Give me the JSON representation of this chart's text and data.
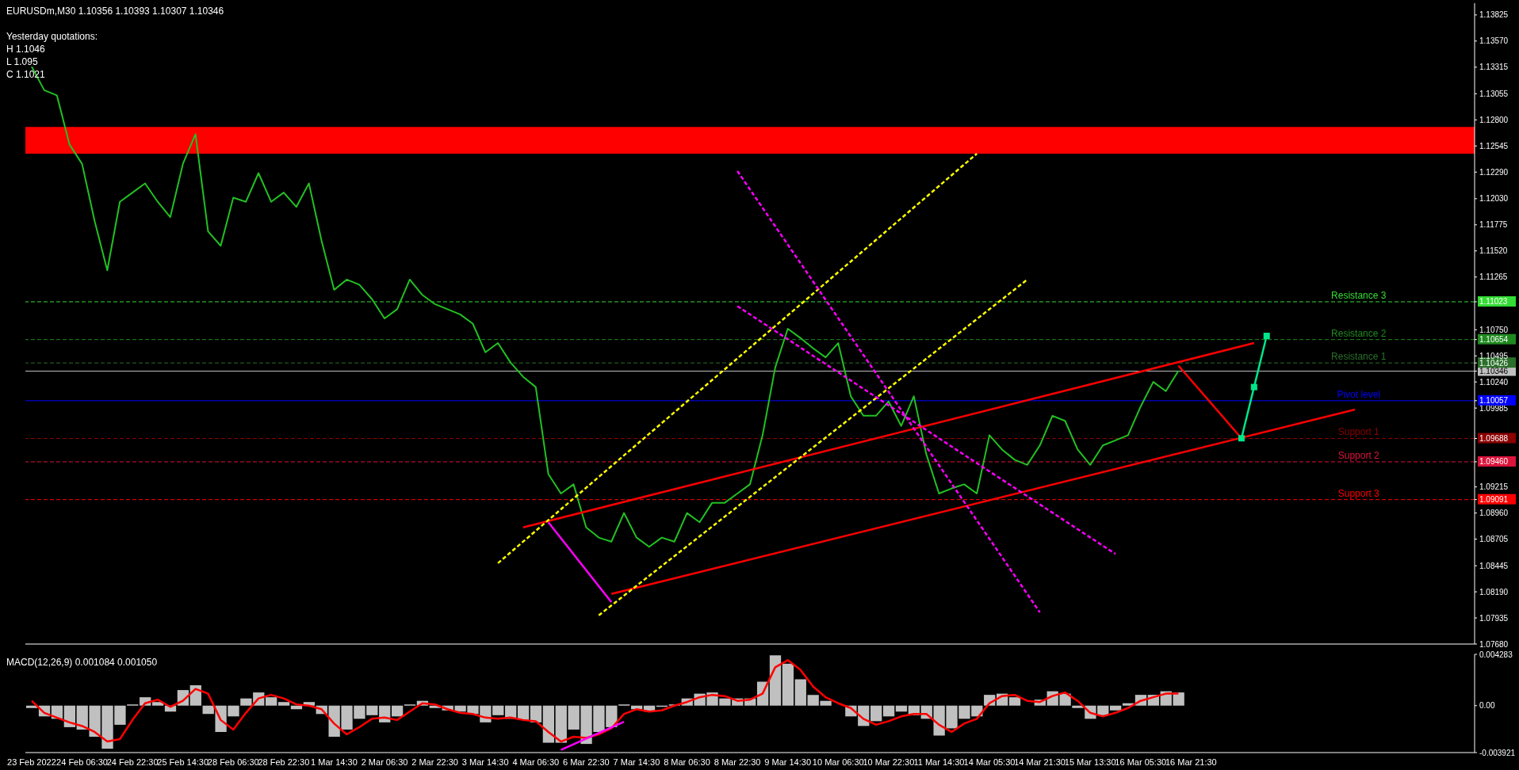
{
  "chart_data": [
    {
      "type": "line",
      "title": "EURUSDm,M30  1.10356 1.10393 1.10307 1.10346",
      "annotations": [
        "Yesterday quotations:",
        "H 1.1046",
        "L 1.095",
        "C 1.1021"
      ],
      "categories": [
        null,
        null,
        null,
        null,
        null,
        null,
        null,
        null,
        null,
        null,
        null,
        null,
        null,
        null,
        null,
        null,
        null,
        null,
        null,
        null,
        null,
        null,
        null,
        null,
        null,
        null,
        null,
        null,
        null,
        null,
        null,
        null,
        null,
        null,
        null,
        null,
        null,
        null,
        null,
        null,
        null,
        null,
        null,
        null,
        null,
        null,
        null,
        null,
        null,
        null,
        null,
        null,
        null,
        null,
        null,
        null,
        null,
        null,
        null,
        null,
        null,
        null,
        null,
        null,
        null,
        null,
        null,
        null,
        null,
        null,
        null,
        null,
        null,
        null,
        null,
        null,
        null,
        null,
        null,
        null,
        null,
        null,
        null,
        null,
        null,
        null,
        null,
        null,
        null,
        null,
        null,
        null,
        null,
        null,
        null,
        null,
        null,
        null,
        null,
        null,
        null,
        null,
        null,
        null,
        null,
        null,
        null,
        null,
        null,
        null,
        null,
        null,
        null,
        null,
        null
      ],
      "series": [
        {
          "color": "#22c022",
          "values": [
            1.1332,
            1.1309,
            1.1304,
            1.1256,
            1.1237,
            1.1181,
            1.1133,
            1.12,
            1.1209,
            1.1218,
            1.12,
            1.1185,
            1.1237,
            1.1266,
            1.1171,
            1.1157,
            1.1204,
            1.12,
            1.1228,
            1.12,
            1.1209,
            1.1195,
            1.1218,
            1.1162,
            1.1114,
            1.1124,
            1.1119,
            1.1105,
            1.1086,
            1.1095,
            1.1124,
            1.1109,
            1.11,
            1.1095,
            1.109,
            1.1081,
            1.1053,
            1.1062,
            1.1043,
            1.1029,
            1.1019,
            1.0934,
            1.0915,
            1.0924,
            1.0882,
            1.0872,
            1.0868,
            1.0896,
            1.0872,
            1.0863,
            1.0872,
            1.0868,
            1.0896,
            1.0887,
            1.0906,
            1.0906,
            1.0915,
            1.0924,
            1.0972,
            1.1038,
            1.1076,
            1.1067,
            1.1057,
            1.1048,
            1.1062,
            1.101,
            1.0991,
            1.0991,
            1.1005,
            1.0981,
            1.101,
            1.0953,
            1.0915,
            1.092,
            1.0924,
            1.0915,
            1.0972,
            1.0958,
            1.0948,
            1.0943,
            1.0962,
            1.0991,
            1.0986,
            1.0958,
            1.0943,
            1.0962,
            1.0967,
            1.0972,
            1.1,
            1.1024,
            1.1015,
            1.1035,
            null,
            null,
            null,
            null,
            null,
            null,
            null,
            null,
            null,
            null,
            null,
            null,
            null,
            null,
            null,
            null,
            null,
            null,
            null,
            null,
            null,
            null,
            null
          ]
        },
        {
          "color": "#ff0000",
          "values": [
            null,
            null,
            null,
            null,
            null,
            null,
            null,
            null,
            null,
            null,
            null,
            null,
            null,
            null,
            null,
            null,
            null,
            null,
            null,
            null,
            null,
            null,
            null,
            null,
            null,
            null,
            null,
            null,
            null,
            null,
            null,
            null,
            null,
            null,
            null,
            null,
            null,
            null,
            null,
            1.0882,
            null,
            null,
            null,
            null,
            null,
            null,
            null,
            null,
            null,
            null,
            null,
            null,
            null,
            null,
            null,
            null,
            null,
            null,
            null,
            null,
            null,
            null,
            null,
            null,
            null,
            null,
            null,
            null,
            null,
            null,
            null,
            null,
            null,
            null,
            null,
            null,
            null,
            null,
            null,
            null,
            null,
            null,
            null,
            null,
            null,
            null,
            null,
            null,
            null,
            null,
            null,
            null,
            null,
            null,
            null,
            null,
            null,
            1.1062,
            null,
            null,
            null,
            null,
            null,
            null,
            null,
            null,
            null,
            null,
            null,
            null,
            null,
            null,
            null,
            null,
            null
          ]
        },
        {
          "color": "#ff0000",
          "values": [
            null,
            null,
            null,
            null,
            null,
            null,
            null,
            null,
            null,
            null,
            null,
            null,
            null,
            null,
            null,
            null,
            null,
            null,
            null,
            null,
            null,
            null,
            null,
            null,
            null,
            null,
            null,
            null,
            null,
            null,
            null,
            null,
            null,
            null,
            null,
            null,
            null,
            null,
            null,
            null,
            null,
            null,
            null,
            null,
            null,
            null,
            1.0817,
            null,
            null,
            null,
            null,
            null,
            null,
            null,
            null,
            null,
            null,
            null,
            null,
            null,
            null,
            null,
            null,
            null,
            null,
            null,
            null,
            null,
            null,
            null,
            null,
            null,
            null,
            null,
            null,
            null,
            null,
            null,
            null,
            null,
            null,
            null,
            null,
            null,
            null,
            null,
            null,
            null,
            null,
            null,
            null,
            null,
            null,
            null,
            null,
            null,
            null,
            null,
            null,
            null,
            null,
            null,
            null,
            null,
            null,
            1.0997,
            null,
            null,
            null,
            null,
            null,
            null,
            null,
            null,
            null
          ]
        },
        {
          "color": "#ff0000",
          "values": [
            null,
            null,
            null,
            null,
            null,
            null,
            null,
            null,
            null,
            null,
            null,
            null,
            null,
            null,
            null,
            null,
            null,
            null,
            null,
            null,
            null,
            null,
            null,
            null,
            null,
            null,
            null,
            null,
            null,
            null,
            null,
            null,
            null,
            null,
            null,
            null,
            null,
            null,
            null,
            null,
            null,
            null,
            null,
            null,
            null,
            null,
            null,
            null,
            null,
            null,
            null,
            null,
            null,
            null,
            null,
            null,
            null,
            null,
            null,
            null,
            null,
            null,
            null,
            null,
            null,
            null,
            null,
            null,
            null,
            null,
            null,
            null,
            null,
            null,
            null,
            null,
            null,
            null,
            null,
            null,
            null,
            null,
            null,
            null,
            null,
            null,
            null,
            null,
            null,
            null,
            null,
            1.104,
            null,
            null,
            null,
            null,
            1.0969,
            null,
            null,
            null,
            null,
            null,
            null,
            null,
            null,
            null,
            null,
            null,
            null,
            null,
            null,
            null,
            null,
            null,
            null
          ]
        },
        {
          "color": "#00e68a",
          "marker": "square",
          "values": [
            null,
            null,
            null,
            null,
            null,
            null,
            null,
            null,
            null,
            null,
            null,
            null,
            null,
            null,
            null,
            null,
            null,
            null,
            null,
            null,
            null,
            null,
            null,
            null,
            null,
            null,
            null,
            null,
            null,
            null,
            null,
            null,
            null,
            null,
            null,
            null,
            null,
            null,
            null,
            null,
            null,
            null,
            null,
            null,
            null,
            null,
            null,
            null,
            null,
            null,
            null,
            null,
            null,
            null,
            null,
            null,
            null,
            null,
            null,
            null,
            null,
            null,
            null,
            null,
            null,
            null,
            null,
            null,
            null,
            null,
            null,
            null,
            null,
            null,
            null,
            null,
            null,
            null,
            null,
            null,
            null,
            null,
            null,
            null,
            null,
            null,
            null,
            null,
            null,
            null,
            null,
            null,
            null,
            null,
            null,
            null,
            1.0969,
            1.1019,
            1.1069,
            null,
            null,
            null,
            null,
            null,
            null,
            null,
            null,
            null,
            null,
            null,
            null,
            null,
            null,
            null,
            null
          ]
        },
        {
          "color": "#ff00ff",
          "values": [
            null,
            null,
            null,
            null,
            null,
            null,
            null,
            null,
            null,
            null,
            null,
            null,
            null,
            null,
            null,
            null,
            null,
            null,
            null,
            null,
            null,
            null,
            null,
            null,
            null,
            null,
            null,
            null,
            null,
            null,
            null,
            null,
            null,
            null,
            null,
            null,
            null,
            null,
            null,
            null,
            null,
            1.0887,
            null,
            null,
            null,
            null,
            1.0809,
            null,
            null,
            null,
            null,
            null,
            null,
            null,
            null,
            null,
            null,
            null,
            null,
            null,
            null,
            null,
            null,
            null,
            null,
            null,
            null,
            null,
            null,
            null,
            null,
            null,
            null,
            null,
            null,
            null,
            null,
            null,
            null,
            null,
            null,
            null,
            null,
            null,
            null,
            null,
            null,
            null,
            null,
            null,
            null,
            null,
            null,
            null,
            null,
            null,
            null,
            null,
            null,
            null,
            null,
            null,
            null,
            null,
            null,
            null,
            null,
            null,
            null,
            null,
            null,
            null,
            null,
            null,
            null
          ]
        },
        {
          "color": "#ffff00",
          "line_style": "dashed",
          "values": [
            null,
            null,
            null,
            null,
            null,
            null,
            null,
            null,
            null,
            null,
            null,
            null,
            null,
            null,
            null,
            null,
            null,
            null,
            null,
            null,
            null,
            null,
            null,
            null,
            null,
            null,
            null,
            null,
            null,
            null,
            null,
            null,
            null,
            null,
            null,
            null,
            null,
            1.0847,
            null,
            null,
            null,
            null,
            null,
            null,
            null,
            null,
            null,
            null,
            null,
            null,
            null,
            null,
            null,
            null,
            null,
            null,
            null,
            null,
            null,
            null,
            null,
            null,
            null,
            null,
            null,
            null,
            null,
            null,
            null,
            null,
            null,
            null,
            null,
            null,
            null,
            1.1247,
            null,
            null,
            null,
            null,
            null,
            null,
            null,
            null,
            null,
            null,
            null,
            null,
            null,
            null,
            null,
            null,
            null,
            null,
            null,
            null,
            null,
            null,
            null,
            null,
            null,
            null,
            null,
            null,
            null,
            null,
            null,
            null,
            null,
            null,
            null,
            null,
            null,
            null,
            null
          ]
        },
        {
          "color": "#ffff00",
          "line_style": "dashed",
          "values": [
            null,
            null,
            null,
            null,
            null,
            null,
            null,
            null,
            null,
            null,
            null,
            null,
            null,
            null,
            null,
            null,
            null,
            null,
            null,
            null,
            null,
            null,
            null,
            null,
            null,
            null,
            null,
            null,
            null,
            null,
            null,
            null,
            null,
            null,
            null,
            null,
            null,
            null,
            null,
            null,
            null,
            null,
            null,
            null,
            null,
            1.0796,
            null,
            null,
            null,
            null,
            null,
            null,
            null,
            null,
            null,
            null,
            null,
            null,
            null,
            null,
            null,
            null,
            null,
            null,
            null,
            null,
            null,
            null,
            null,
            null,
            null,
            null,
            null,
            null,
            null,
            null,
            null,
            null,
            null,
            1.1124,
            null,
            null,
            null,
            null,
            null,
            null,
            null,
            null,
            null,
            null,
            null,
            null,
            null,
            null,
            null,
            null,
            null,
            null,
            null,
            null,
            null,
            null,
            null,
            null,
            null,
            null,
            null,
            null,
            null,
            null,
            null,
            null,
            null,
            null,
            null
          ]
        },
        {
          "color": "#ff00ff",
          "line_style": "dashed",
          "values": [
            null,
            null,
            null,
            null,
            null,
            null,
            null,
            null,
            null,
            null,
            null,
            null,
            null,
            null,
            null,
            null,
            null,
            null,
            null,
            null,
            null,
            null,
            null,
            null,
            null,
            null,
            null,
            null,
            null,
            null,
            null,
            null,
            null,
            null,
            null,
            null,
            null,
            null,
            null,
            null,
            null,
            null,
            null,
            null,
            null,
            null,
            null,
            null,
            null,
            null,
            null,
            null,
            null,
            null,
            null,
            null,
            1.123,
            null,
            null,
            null,
            null,
            null,
            null,
            null,
            null,
            null,
            null,
            null,
            null,
            null,
            null,
            null,
            null,
            null,
            null,
            null,
            null,
            null,
            null,
            null,
            1.0799,
            null,
            null,
            null,
            null,
            null,
            null,
            null,
            null,
            null,
            null,
            null,
            null,
            null,
            null,
            null,
            null,
            null,
            null,
            null,
            null,
            null,
            null,
            null,
            null,
            null,
            null,
            null,
            null,
            null,
            null,
            null,
            null,
            null,
            null
          ]
        },
        {
          "color": "#ff00ff",
          "line_style": "dashed",
          "values": [
            null,
            null,
            null,
            null,
            null,
            null,
            null,
            null,
            null,
            null,
            null,
            null,
            null,
            null,
            null,
            null,
            null,
            null,
            null,
            null,
            null,
            null,
            null,
            null,
            null,
            null,
            null,
            null,
            null,
            null,
            null,
            null,
            null,
            null,
            null,
            null,
            null,
            null,
            null,
            null,
            null,
            null,
            null,
            null,
            null,
            null,
            null,
            null,
            null,
            null,
            null,
            null,
            null,
            null,
            null,
            null,
            1.1098,
            null,
            null,
            null,
            null,
            null,
            null,
            null,
            null,
            null,
            null,
            null,
            null,
            null,
            null,
            null,
            null,
            null,
            null,
            null,
            null,
            null,
            null,
            null,
            null,
            null,
            null,
            null,
            null,
            null,
            1.0856,
            null,
            null,
            null,
            null,
            null,
            null,
            null,
            null,
            null,
            null,
            null,
            null,
            null,
            null,
            null,
            null,
            null,
            null,
            null,
            null,
            null,
            null,
            null,
            null,
            null,
            null,
            null,
            null
          ]
        }
      ],
      "ylim": [
        1.0768,
        1.1394
      ],
      "yticks": [
        {
          "value": 1.0768,
          "label": "1.07680"
        },
        1.07935,
        {
          "value": 1.0819,
          "label": "1.08190"
        },
        1.08445,
        1.08705,
        {
          "value": 1.0896,
          "label": "1.08960"
        },
        1.09091,
        1.09215,
        {
          "value": 1.0946,
          "label": "1.09460"
        },
        1.09688,
        1.09985,
        1.10057,
        {
          "value": 1.1024,
          "label": "1.10240"
        },
        1.10346,
        1.10426,
        1.10495,
        1.10654,
        {
          "value": 1.1075,
          "label": "1.10750"
        },
        1.11023,
        1.11265,
        {
          "value": 1.1152,
          "label": "1.11520"
        },
        1.11775,
        {
          "value": 1.1203,
          "label": "1.12030"
        },
        {
          "value": 1.1229,
          "label": "1.12290"
        },
        1.12545,
        {
          "value": 1.128,
          "label": "1.12800"
        },
        1.13055,
        1.13315,
        {
          "value": 1.1357,
          "label": "1.13570"
        },
        1.13825
      ],
      "tick_labels": "y",
      "ref_lines": [
        {
          "axis": "y",
          "value": 1.11023,
          "label": "Resistance 3",
          "color": "#33dd33",
          "line_style": "dashed"
        },
        {
          "axis": "y",
          "value": 1.10654,
          "label": "Resistance 2",
          "color": "#1f8a1f",
          "line_style": "dashed"
        },
        {
          "axis": "y",
          "value": 1.10426,
          "label": "Resistance 1",
          "color": "#2a6f2a",
          "line_style": "dashed"
        },
        {
          "axis": "y",
          "value": 1.10346,
          "color": "#c0c0c0",
          "line_style": "solid"
        },
        {
          "axis": "y",
          "value": 1.10057,
          "label": "Pivot level",
          "color": "#0000ff",
          "line_style": "solid"
        },
        {
          "axis": "y",
          "value": 1.09688,
          "label": "Support 1",
          "color": "#8b0000",
          "line_style": "dashed"
        },
        {
          "axis": "y",
          "value": 1.0946,
          "label": "Support 2",
          "color": "#dc143c",
          "line_style": "dashed"
        },
        {
          "axis": "y",
          "value": 1.09091,
          "label": "Support 3",
          "color": "#ff0000",
          "line_style": "dashed"
        }
      ],
      "bands": [
        {
          "axis": "y",
          "from": 1.1247,
          "to": 1.1273,
          "color": "#ff0000"
        }
      ]
    },
    {
      "type": "bar",
      "title": "MACD(12,26,9) 0.001084 0.001050",
      "categories": [
        "23 Feb 2022",
        null,
        null,
        null,
        "24 Feb 06:30",
        null,
        null,
        null,
        "24 Feb 22:30",
        null,
        null,
        null,
        "25 Feb 14:30",
        null,
        null,
        null,
        "28 Feb 06:30",
        null,
        null,
        null,
        "28 Feb 22:30",
        null,
        null,
        null,
        "1 Mar 14:30",
        null,
        null,
        null,
        "2 Mar 06:30",
        null,
        null,
        null,
        "2 Mar 22:30",
        null,
        null,
        null,
        "3 Mar 14:30",
        null,
        null,
        null,
        "4 Mar 06:30",
        null,
        null,
        null,
        "6 Mar 22:30",
        null,
        null,
        null,
        "7 Mar 14:30",
        null,
        null,
        null,
        "8 Mar 06:30",
        null,
        null,
        null,
        "8 Mar 22:30",
        null,
        null,
        null,
        "9 Mar 14:30",
        null,
        null,
        null,
        "10 Mar 06:30",
        null,
        null,
        null,
        "10 Mar 22:30",
        null,
        null,
        null,
        "11 Mar 14:30",
        null,
        null,
        null,
        "14 Mar 05:30",
        null,
        null,
        null,
        "14 Mar 21:30",
        null,
        null,
        null,
        "15 Mar 13:30",
        null,
        null,
        null,
        "16 Mar 05:30",
        null,
        null,
        null,
        "16 Mar 21:30",
        null,
        null,
        null,
        null,
        null,
        null,
        null,
        null,
        null,
        null,
        null,
        null,
        null,
        null,
        null,
        null,
        null,
        null,
        null,
        null,
        null,
        null
      ],
      "series": [
        {
          "color": "#c0c0c0",
          "values": [
            -0.0002,
            -0.0009,
            -0.0011,
            -0.0018,
            -0.002,
            -0.0026,
            -0.0036,
            -0.0016,
            0.0001,
            0.0007,
            0.0003,
            -0.0005,
            0.0013,
            0.0017,
            -0.0007,
            -0.0022,
            -0.0009,
            0.0006,
            0.0011,
            0.0007,
            0.0003,
            -0.0003,
            0.0003,
            -0.0007,
            -0.0026,
            -0.002,
            -0.0011,
            -0.0008,
            -0.0014,
            -0.0009,
            0.0001,
            0.0004,
            -0.0002,
            -0.0004,
            -0.0005,
            -0.0007,
            -0.0014,
            -0.0008,
            -0.0011,
            -0.0012,
            -0.0014,
            -0.0031,
            -0.0031,
            -0.002,
            -0.0032,
            -0.0022,
            -0.0018,
            0.0001,
            -0.0003,
            -0.0005,
            -0.0001,
            0.0001,
            0.0006,
            0.001,
            0.0011,
            0.0006,
            0.0006,
            0.0006,
            0.002,
            0.0042,
            0.0035,
            0.0022,
            0.0009,
            0.0004,
            0,
            -0.0009,
            -0.0017,
            -0.0013,
            -0.0009,
            -0.0005,
            -0.0008,
            -0.0011,
            -0.0025,
            -0.0019,
            -0.0011,
            -0.0009,
            0.0009,
            0.001,
            0.0007,
            0,
            0.0005,
            0.0012,
            0.001,
            -0.0002,
            -0.0011,
            -0.0008,
            -0.0004,
            0.0002,
            0.0009,
            0.0009,
            0.0012,
            0.0011,
            null,
            null,
            null,
            null,
            null,
            null,
            null,
            null,
            null,
            null,
            null,
            null,
            null,
            null,
            null,
            null,
            null,
            null,
            null,
            null,
            null,
            null,
            null
          ]
        },
        {
          "type": "line",
          "color": "#ff0000",
          "values": [
            0.0004,
            -0.0006,
            -0.001,
            -0.0014,
            -0.0017,
            -0.0022,
            -0.003,
            -0.0028,
            -0.0012,
            0.0002,
            0.0005,
            -0.0001,
            0.0004,
            0.0014,
            0.001,
            -0.0012,
            -0.002,
            -0.0006,
            0.0006,
            0.0009,
            0.0006,
            0.0001,
            0,
            -0.0003,
            -0.0015,
            -0.0024,
            -0.0018,
            -0.0011,
            -0.001,
            -0.0012,
            -0.0005,
            0.0002,
            0.0001,
            -0.0003,
            -0.0006,
            -0.0007,
            -0.001,
            -0.0011,
            -0.001,
            -0.0012,
            -0.0013,
            -0.0022,
            -0.003,
            -0.0026,
            -0.0027,
            -0.0024,
            -0.0019,
            -0.0007,
            -0.0003,
            -0.0005,
            -0.0004,
            0,
            0.0003,
            0.0007,
            0.0009,
            0.0008,
            0.0004,
            0.0005,
            0.001,
            0.0032,
            0.0038,
            0.003,
            0.0016,
            0.0007,
            0.0002,
            -0.0002,
            -0.0011,
            -0.0016,
            -0.0013,
            -0.0009,
            -0.0007,
            -0.0007,
            -0.0016,
            -0.0022,
            -0.0015,
            -0.0011,
            0.0002,
            0.0008,
            0.0009,
            0.0004,
            0.0003,
            0.0008,
            0.0011,
            0.0004,
            -0.0006,
            -0.0009,
            -0.0006,
            -0.0002,
            0.0004,
            0.0007,
            0.001,
            0.001,
            null,
            null,
            null,
            null,
            null,
            null,
            null,
            null,
            null,
            null,
            null,
            null,
            null,
            null,
            null,
            null,
            null,
            null,
            null,
            null,
            null,
            null,
            null
          ]
        },
        {
          "type": "line",
          "color": "#ff00ff",
          "values": [
            null,
            null,
            null,
            null,
            null,
            null,
            null,
            null,
            null,
            null,
            null,
            null,
            null,
            null,
            null,
            null,
            null,
            null,
            null,
            null,
            null,
            null,
            null,
            null,
            null,
            null,
            null,
            null,
            null,
            null,
            null,
            null,
            null,
            null,
            null,
            null,
            null,
            null,
            null,
            null,
            null,
            null,
            -0.0037,
            null,
            null,
            null,
            null,
            -0.00135,
            null,
            null,
            null,
            null,
            null,
            null,
            null,
            null,
            null,
            null,
            null,
            null,
            null,
            null,
            null,
            null,
            null,
            null,
            null,
            null,
            null,
            null,
            null,
            null,
            null,
            null,
            null,
            null,
            null,
            null,
            null,
            null,
            null,
            null,
            null,
            null,
            null,
            null,
            null,
            null,
            null,
            null,
            null,
            null,
            null,
            null,
            null,
            null,
            null,
            null,
            null,
            null,
            null,
            null,
            null,
            null,
            null,
            null,
            null,
            null,
            null,
            null,
            null,
            null,
            null,
            null,
            null
          ]
        }
      ],
      "ylim": [
        -0.003921,
        0.004283
      ],
      "yticks": [
        -0.003921,
        {
          "value": 0,
          "label": "0.00"
        },
        0.004283
      ]
    }
  ]
}
